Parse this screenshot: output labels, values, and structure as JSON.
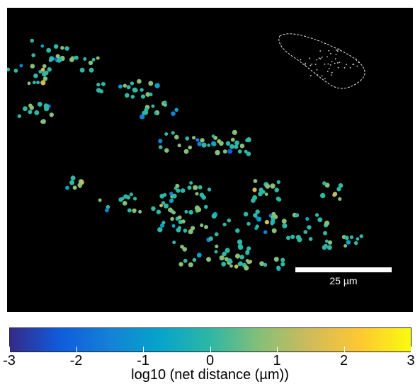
{
  "figure": {
    "scale_bar_label": "25 µm",
    "colorbar": {
      "label": "log10 (net distance (µm))",
      "ticks": [
        -3,
        -2,
        -1,
        0,
        1,
        2,
        3
      ],
      "tick_labels": [
        "-3",
        "-2",
        "-1",
        "0",
        "1",
        "2",
        "3"
      ],
      "colormap": "parula",
      "stops": [
        "#352a87",
        "#0f5cdd",
        "#1481d6",
        "#06a4ca",
        "#2eb7a4",
        "#87bf77",
        "#d1bb59",
        "#fec832",
        "#f9fb0e"
      ]
    },
    "background_color": "#000000",
    "inset": "white outline of cell",
    "point_color_scale": "log10 net distance"
  }
}
